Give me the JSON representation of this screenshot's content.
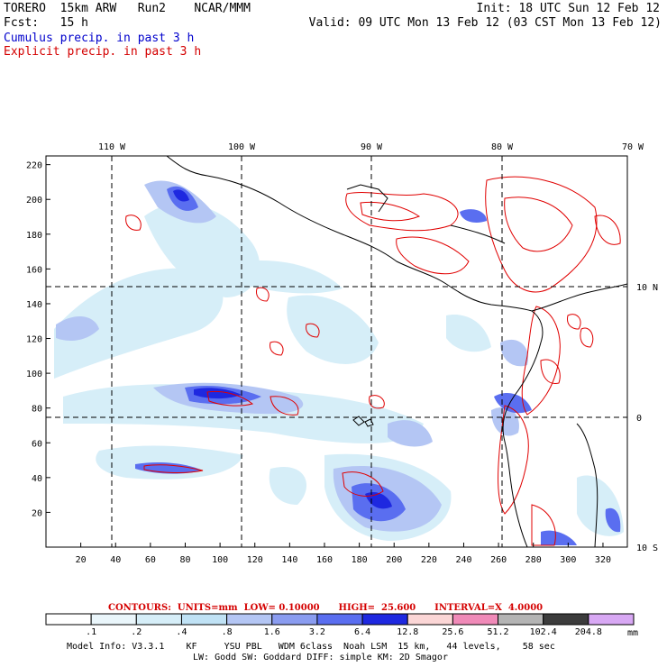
{
  "header": {
    "title_left": "TORERO  15km ARW   Run2    NCAR/MMM",
    "fcst": "Fcst:   15 h",
    "init": "Init: 18 UTC Sun 12 Feb 12",
    "valid": "Valid: 09 UTC Mon 13 Feb 12 (03 CST Mon 13 Feb 12)",
    "legend_cumulus": "Cumulus precip. in past 3 h",
    "legend_explicit": "Explicit precip. in past 3 h"
  },
  "map": {
    "lon_labels": [
      "110 W",
      "100 W",
      "90 W",
      "80 W",
      "70 W"
    ],
    "lat_labels": [
      "10 N",
      "0",
      "10 S"
    ],
    "x_ticks": [
      "20",
      "40",
      "60",
      "80",
      "100",
      "120",
      "140",
      "160",
      "180",
      "200",
      "220",
      "240",
      "260",
      "280",
      "300",
      "320"
    ],
    "y_ticks": [
      "220",
      "200",
      "180",
      "160",
      "140",
      "120",
      "100",
      "80",
      "60",
      "40",
      "20"
    ],
    "x_tick_values": [
      20,
      40,
      60,
      80,
      100,
      120,
      140,
      160,
      180,
      200,
      220,
      240,
      260,
      280,
      300,
      320
    ],
    "y_tick_values": [
      220,
      200,
      180,
      160,
      140,
      120,
      100,
      80,
      60,
      40,
      20
    ],
    "grid_range_x": [
      0,
      334
    ],
    "grid_range_y": [
      0,
      225
    ],
    "colors": {
      "coast": "#000000",
      "explicit_contour": "#e00000"
    }
  },
  "contour_info": {
    "label": "CONTOURS:  UNITS=mm  LOW= 0.10000      HIGH=  25.600      INTERVAL=X  4.0000"
  },
  "colorbar": {
    "labels": [
      ".1",
      ".2",
      ".4",
      ".8",
      "1.6",
      "3.2",
      "6.4",
      "12.8",
      "25.6",
      "51.2",
      "102.4",
      "204.8"
    ],
    "unit": "mm",
    "colors": [
      "#ffffff",
      "#eaf6fb",
      "#d6eef8",
      "#c0e2f5",
      "#b4c6f4",
      "#8a9cf0",
      "#5a6ef0",
      "#1e28e0",
      "#fbd6d6",
      "#f08ab8",
      "#b4b4b4",
      "#3c3c3c",
      "#d8a8f4"
    ]
  },
  "footer": {
    "line1": "Model Info: V3.3.1    KF     YSU PBL   WDM 6class  Noah LSM  15 km,   44 levels,    58 sec",
    "line2": "LW: Godd SW: Goddard DIFF: simple KM: 2D Smagor"
  }
}
